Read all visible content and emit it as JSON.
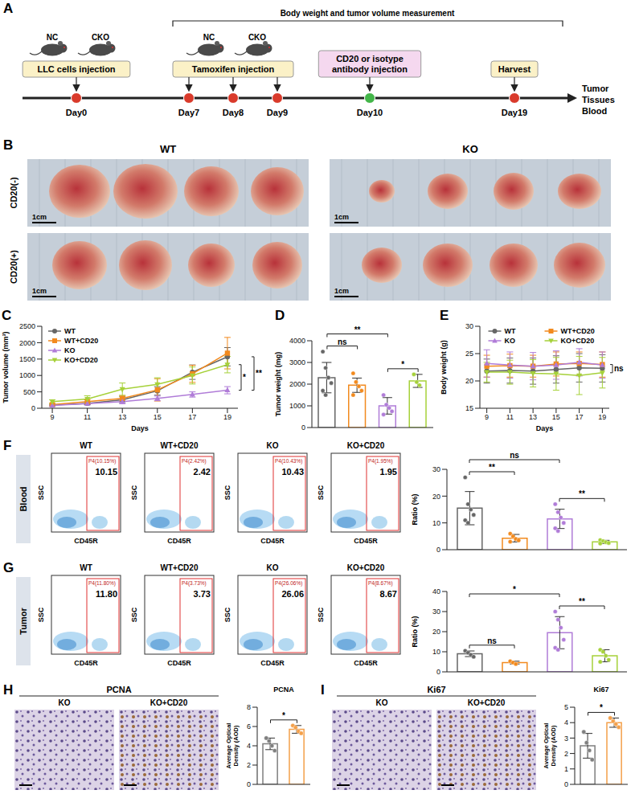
{
  "A": {
    "panel": "A",
    "measure_label": "Body weight and tumor volume measurement",
    "mice_groups": [
      [
        "NC",
        "CKO"
      ],
      [
        "NC",
        "CKO"
      ]
    ],
    "days": [
      "Day0",
      "Day7",
      "Day8",
      "Day9",
      "Day10",
      "Day19"
    ],
    "boxes": [
      {
        "label": "LLC cells injection",
        "days": [
          "Day0"
        ]
      },
      {
        "label": "Tamoxifen injection",
        "days": [
          "Day7",
          "Day8",
          "Day9"
        ]
      },
      {
        "label": "CD20 or isotype antibody injection",
        "days": [
          "Day10"
        ]
      },
      {
        "label": "Harvest",
        "days": [
          "Day19"
        ]
      }
    ],
    "harvest_items": [
      "Tumor",
      "Tissues",
      "Blood"
    ]
  },
  "B": {
    "panel": "B",
    "groups": [
      "WT",
      "KO"
    ],
    "rows": [
      "CD20(-)",
      "CD20(+)"
    ],
    "scale_bar": "1cm"
  },
  "F": {
    "panel": "F",
    "row_label": "Blood",
    "x_axis_title": "CD45R",
    "y_axis_title": "SSC",
    "plots": [
      {
        "group": "WT",
        "percent": "10.15",
        "gate_label": "P4(10.15%)"
      },
      {
        "group": "WT+CD20",
        "percent": "2.42",
        "gate_label": "P4(2.42%)"
      },
      {
        "group": "KO",
        "percent": "10.43",
        "gate_label": "P4(10.43%)"
      },
      {
        "group": "KO+CD20",
        "percent": "1.95",
        "gate_label": "P4(1.95%)"
      }
    ]
  },
  "G": {
    "panel": "G",
    "row_label": "Tumor",
    "x_axis_title": "CD45R",
    "y_axis_title": "SSC",
    "plots": [
      {
        "group": "WT",
        "percent": "11.80",
        "gate_label": "P4(11.80%)"
      },
      {
        "group": "WT+CD20",
        "percent": "3.73",
        "gate_label": "P4(3.73%)"
      },
      {
        "group": "KO",
        "percent": "26.06",
        "gate_label": "P4(26.06%)"
      },
      {
        "group": "KO+CD20",
        "percent": "8.67",
        "gate_label": "P4(8.67%)"
      }
    ]
  },
  "H": {
    "panel": "H",
    "title": "PCNA",
    "labels": [
      "KO",
      "KO+CD20"
    ]
  },
  "I": {
    "panel": "I",
    "title": "Ki67",
    "labels": [
      "KO",
      "KO+CD20"
    ]
  },
  "chart_data": [
    {
      "panel": "C",
      "type": "line",
      "x_label": "Days",
      "y_label": "Tumor volume (mm³)",
      "x": [
        9,
        11,
        13,
        15,
        17,
        19
      ],
      "xlim": [
        8.4,
        19.6
      ],
      "xticks": [
        9,
        11,
        13,
        15,
        17,
        19
      ],
      "ylim": [
        0,
        2500
      ],
      "yticks": [
        0,
        500,
        1000,
        1500,
        2000,
        2500
      ],
      "legend": "upper left",
      "series": [
        {
          "name": "WT",
          "color": "#666666",
          "marker": "circle",
          "values": [
            95,
            150,
            260,
            530,
            1100,
            1570
          ],
          "errors": [
            20,
            40,
            90,
            130,
            220,
            280
          ]
        },
        {
          "name": "WT+CD20",
          "color": "#f28a1e",
          "marker": "square",
          "values": [
            110,
            200,
            300,
            560,
            1050,
            1680
          ],
          "errors": [
            40,
            60,
            90,
            340,
            260,
            480
          ]
        },
        {
          "name": "KO",
          "color": "#b07cd8",
          "marker": "triangle",
          "values": [
            85,
            140,
            200,
            300,
            420,
            550
          ],
          "errors": [
            30,
            40,
            60,
            70,
            80,
            110
          ]
        },
        {
          "name": "KO+CD20",
          "color": "#a6d13a",
          "marker": "triangle-down",
          "values": [
            200,
            280,
            580,
            730,
            1000,
            1330
          ],
          "errors": [
            60,
            100,
            190,
            200,
            260,
            250
          ]
        }
      ],
      "significance": [
        {
          "series": [
            "KO+CD20",
            "KO"
          ],
          "label": "*"
        },
        {
          "series": [
            "WT",
            "KO"
          ],
          "label": "**"
        }
      ]
    },
    {
      "panel": "D",
      "type": "bar",
      "y_label": "Tumor weight (mg)",
      "categories": [
        "WT",
        "WT+CD20",
        "KO",
        "KO+CD20"
      ],
      "colors": [
        "#666666",
        "#f28a1e",
        "#b07cd8",
        "#a6d13a"
      ],
      "values": [
        2300,
        1950,
        1000,
        2150
      ],
      "errors": [
        700,
        330,
        380,
        300
      ],
      "points": [
        [
          3500,
          2750,
          2300,
          2050,
          1700,
          1500
        ],
        [
          2500,
          2100,
          1900,
          1700,
          1500
        ],
        [
          1500,
          1050,
          900,
          750,
          600
        ],
        [
          2450,
          2100,
          1950
        ]
      ],
      "ylim": [
        0,
        4000
      ],
      "yticks": [
        0,
        1000,
        2000,
        3000,
        4000
      ],
      "tick_labels": "y",
      "significance": [
        {
          "pair": [
            "WT",
            "WT+CD20"
          ],
          "label": "ns"
        },
        {
          "pair": [
            "KO",
            "KO+CD20"
          ],
          "label": "*"
        },
        {
          "pair": [
            "WT",
            "KO"
          ],
          "label": "**"
        }
      ]
    },
    {
      "panel": "E",
      "type": "line",
      "x_label": "Days",
      "y_label": "Body weight (g)",
      "x": [
        9,
        11,
        13,
        15,
        17,
        19
      ],
      "xlim": [
        8.4,
        19.6
      ],
      "xticks": [
        9,
        11,
        13,
        15,
        17,
        19
      ],
      "ylim": [
        15,
        30
      ],
      "yticks": [
        15,
        20,
        25,
        30
      ],
      "legend": "upper center",
      "series": [
        {
          "name": "WT",
          "color": "#666666",
          "marker": "circle",
          "values": [
            21.8,
            21.9,
            21.8,
            22.1,
            22.4,
            22.3
          ],
          "errors": [
            2.2,
            2.3,
            2.4,
            2.5,
            2.6,
            2.5
          ]
        },
        {
          "name": "WT+CD20",
          "color": "#f28a1e",
          "marker": "square",
          "values": [
            22.7,
            22.8,
            22.7,
            23.1,
            23.2,
            23.0
          ],
          "errors": [
            2.0,
            2.1,
            2.0,
            2.2,
            2.1,
            2.3
          ]
        },
        {
          "name": "KO",
          "color": "#b07cd8",
          "marker": "triangle",
          "values": [
            23.2,
            22.9,
            22.7,
            22.9,
            23.4,
            22.9
          ],
          "errors": [
            2.5,
            2.4,
            2.5,
            2.6,
            2.5,
            2.4
          ]
        },
        {
          "name": "KO+CD20",
          "color": "#a6d13a",
          "marker": "triangle-down",
          "values": [
            21.6,
            21.6,
            21.4,
            21.3,
            21.0,
            21.5
          ],
          "errors": [
            1.8,
            2.2,
            2.5,
            3.0,
            3.5,
            2.8
          ]
        }
      ],
      "significance": [
        {
          "series": [
            "WT+CD20",
            "KO+CD20"
          ],
          "label": "ns"
        }
      ]
    },
    {
      "type": "bar",
      "y_label": "Ratio (%)",
      "categories": [
        "WT",
        "WT+CD20",
        "KO",
        "KO+CD20"
      ],
      "colors": [
        "#666666",
        "#f28a1e",
        "#b07cd8",
        "#a6d13a"
      ],
      "values": [
        15.5,
        4.3,
        11.5,
        2.9
      ],
      "errors": [
        6.2,
        1.4,
        3.6,
        0.6
      ],
      "points": [
        [
          27,
          17,
          15,
          13,
          11,
          10
        ],
        [
          6,
          5,
          4,
          3.5,
          3
        ],
        [
          17,
          14,
          12,
          10,
          8,
          7
        ],
        [
          3.6,
          3.2,
          2.8,
          2.5,
          2.3
        ]
      ],
      "ylim": [
        0,
        30
      ],
      "yticks": [
        0,
        10,
        20,
        30
      ],
      "tick_labels": "y",
      "significance": [
        {
          "pair": [
            "WT",
            "WT+CD20"
          ],
          "label": "**"
        },
        {
          "pair": [
            "KO",
            "KO+CD20"
          ],
          "label": "**"
        },
        {
          "pair": [
            "WT",
            "KO"
          ],
          "label": "ns"
        }
      ]
    },
    {
      "type": "bar",
      "y_label": "Ratio (%)",
      "categories": [
        "WT",
        "WT+CD20",
        "KO",
        "KO+CD20"
      ],
      "colors": [
        "#666666",
        "#f28a1e",
        "#b07cd8",
        "#a6d13a"
      ],
      "values": [
        9,
        4.6,
        19.5,
        8
      ],
      "errors": [
        1.4,
        0.7,
        8,
        3
      ],
      "points": [
        [
          10.5,
          9.5,
          8.5,
          7.5
        ],
        [
          5.3,
          4.6,
          3.9
        ],
        [
          30,
          26,
          22,
          16,
          12,
          11
        ],
        [
          11,
          10,
          8,
          6,
          5
        ]
      ],
      "ylim": [
        0,
        40
      ],
      "yticks": [
        0,
        10,
        20,
        30,
        40
      ],
      "tick_labels": "y",
      "significance": [
        {
          "pair": [
            "WT",
            "WT+CD20"
          ],
          "label": "ns"
        },
        {
          "pair": [
            "KO",
            "KO+CD20"
          ],
          "label": "**"
        },
        {
          "pair": [
            "WT",
            "KO"
          ],
          "label": "*"
        }
      ]
    },
    {
      "type": "bar",
      "title": "PCNA",
      "y_label": "Average Optical Density (AOD)",
      "categories": [
        "KO",
        "KO+CD20"
      ],
      "colors": [
        "#7f7f7f",
        "#f4a04a"
      ],
      "values": [
        4.2,
        5.7
      ],
      "errors": [
        0.6,
        0.4
      ],
      "points": [
        [
          4.8,
          4.5,
          4.0,
          3.5
        ],
        [
          6.1,
          5.9,
          5.5,
          5.3
        ]
      ],
      "ylim": [
        0,
        8
      ],
      "yticks": [
        0,
        2,
        4,
        6,
        8
      ],
      "tick_labels": "y",
      "significance": [
        {
          "pair": [
            "KO",
            "KO+CD20"
          ],
          "label": "*"
        }
      ]
    },
    {
      "type": "bar",
      "title": "Ki67",
      "y_label": "Average Optical Density (AOD)",
      "categories": [
        "KO",
        "KO+CD20"
      ],
      "colors": [
        "#7f7f7f",
        "#f4a04a"
      ],
      "values": [
        2.5,
        4.0
      ],
      "errors": [
        0.8,
        0.3
      ],
      "points": [
        [
          3.4,
          2.7,
          2.2,
          1.6
        ],
        [
          4.3,
          4.1,
          3.9,
          3.7
        ]
      ],
      "ylim": [
        0,
        5
      ],
      "yticks": [
        0,
        1,
        2,
        3,
        4,
        5
      ],
      "tick_labels": "y",
      "significance": [
        {
          "pair": [
            "KO",
            "KO+CD20"
          ],
          "label": "*"
        }
      ]
    }
  ]
}
